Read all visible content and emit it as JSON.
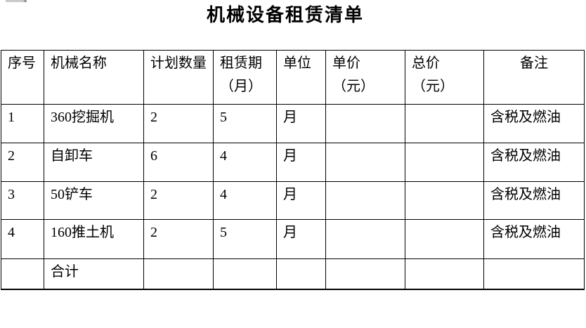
{
  "page": {
    "title": "机械设备租赁清单"
  },
  "colors": {
    "background": "#ffffff",
    "text": "#000000",
    "table_border": "#000000",
    "artifact_gray": "#c9c9c9",
    "artifact_gray_dark": "#9a9a9a"
  },
  "table": {
    "columns": [
      {
        "line1": "序号",
        "line2": ""
      },
      {
        "line1": "机械名称",
        "line2": ""
      },
      {
        "line1": "计划数量",
        "line2": ""
      },
      {
        "line1": "租赁期",
        "line2": "（月）"
      },
      {
        "line1": "单位",
        "line2": ""
      },
      {
        "line1": "单价",
        "line2": "（元）"
      },
      {
        "line1": "总价",
        "line2": "（元）"
      },
      {
        "line1": "备注",
        "line2": ""
      }
    ],
    "rows": [
      {
        "seq": "1",
        "name": "360挖掘机",
        "qty": "2",
        "period": "5",
        "unit": "月",
        "unit_price": "",
        "total_price": "",
        "note": "含税及燃油"
      },
      {
        "seq": "2",
        "name": "自卸车",
        "qty": "6",
        "period": "4",
        "unit": "月",
        "unit_price": "",
        "total_price": "",
        "note": "含税及燃油"
      },
      {
        "seq": "3",
        "name": "50铲车",
        "qty": "2",
        "period": "4",
        "unit": "月",
        "unit_price": "",
        "total_price": "",
        "note": "含税及燃油"
      },
      {
        "seq": "4",
        "name": "160推土机",
        "qty": "2",
        "period": "5",
        "unit": "月",
        "unit_price": "",
        "total_price": "",
        "note": "含税及燃油"
      }
    ],
    "footer": {
      "label": "合计"
    }
  }
}
